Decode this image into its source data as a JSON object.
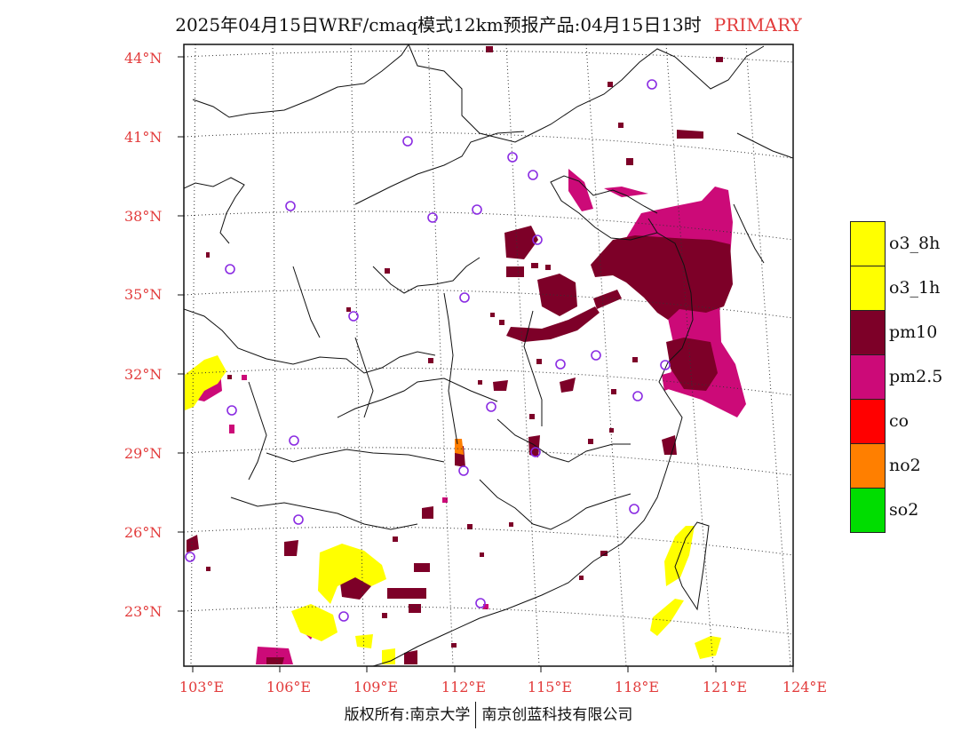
{
  "title": {
    "main": "2025年04月15日WRF/cmaq模式12km预报产品:04月15日13时",
    "tag": "PRIMARY"
  },
  "axes": {
    "lat_labels": [
      "44°N",
      "41°N",
      "38°N",
      "35°N",
      "32°N",
      "29°N",
      "26°N",
      "23°N"
    ],
    "lon_labels": [
      "103°E",
      "106°E",
      "109°E",
      "112°E",
      "115°E",
      "118°E",
      "121°E",
      "124°E"
    ]
  },
  "legend": [
    {
      "label": "o3_8h",
      "color": "#ffff00"
    },
    {
      "label": "o3_1h",
      "color": "#ffff00"
    },
    {
      "label": "pm10",
      "color": "#7d0028"
    },
    {
      "label": "pm2.5",
      "color": "#cc0a78"
    },
    {
      "label": "co",
      "color": "#ff0000"
    },
    {
      "label": "no2",
      "color": "#ff7f00"
    },
    {
      "label": "so2",
      "color": "#00dd00"
    }
  ],
  "footer": {
    "left": "版权所有:南京大学",
    "right": "南京创蓝科技有限公司"
  },
  "colors": {
    "label_red": "#e23b3b",
    "pm10": "#7d0028",
    "pm25": "#cc0a78",
    "o3": "#ffff00",
    "no2": "#ff7f00",
    "station": "#8a2be2"
  }
}
